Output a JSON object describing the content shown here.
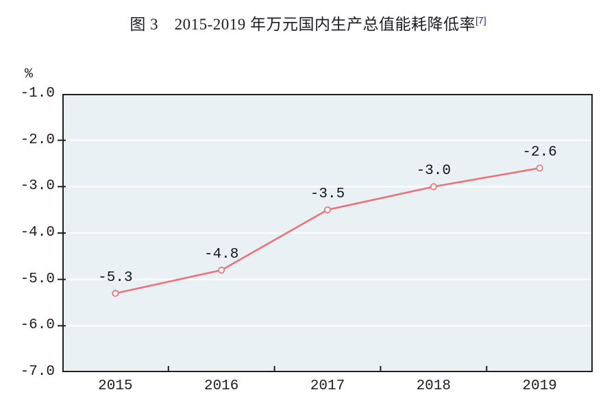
{
  "title": {
    "text": "图 3　2015-2019 年万元国内生产总值能耗降低率",
    "footnote_marker": "[7]"
  },
  "colors": {
    "page_background": "#ffffff",
    "plot_background": "#e9f1f5",
    "gridline": "#ffffff",
    "axis_frame": "#1f1f1f",
    "line": "#ed7177",
    "marker_fill": "#fdf6f6",
    "label_text": "#1c1c24",
    "footnote_blue": "#2222dd"
  },
  "chart_data": {
    "type": "line",
    "title": "图 3　2015-2019 年万元国内生产总值能耗降低率[7]",
    "categories": [
      "2015",
      "2016",
      "2017",
      "2018",
      "2019"
    ],
    "values": [
      -5.3,
      -4.8,
      -3.5,
      -3.0,
      -2.6
    ],
    "data_labels": [
      "-5.3",
      "-4.8",
      "-3.5",
      "-3.0",
      "-2.6"
    ],
    "unit": "%",
    "xlabel": "",
    "ylabel": "%",
    "y_ticks": [
      "-1.0",
      "-2.0",
      "-3.0",
      "-4.0",
      "-5.0",
      "-6.0",
      "-7.0"
    ],
    "y_tick_values": [
      -1.0,
      -2.0,
      -3.0,
      -4.0,
      -5.0,
      -6.0,
      -7.0
    ],
    "ylim": [
      -7.0,
      -1.0
    ],
    "grid": "horizontal",
    "legend_position": "none"
  }
}
